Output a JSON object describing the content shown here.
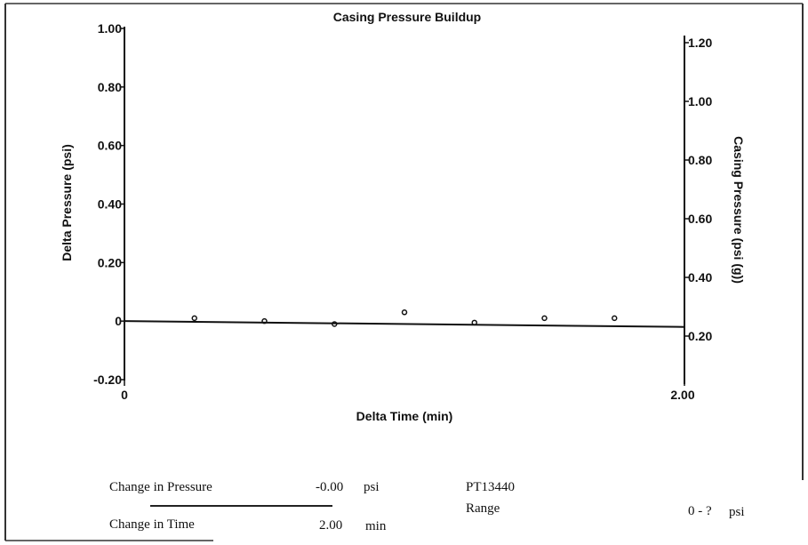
{
  "chart_data": {
    "type": "scatter",
    "title": "Casing Pressure Buildup",
    "xlabel": "Delta Time (min)",
    "ylabel": "Delta Pressure (psi)",
    "y2label": "Casing Pressure (psi (g))",
    "xlim": [
      0,
      2.0
    ],
    "ylim": [
      -0.2,
      1.0
    ],
    "y2lim": [
      0.2,
      1.2
    ],
    "x_ticks": [
      "0",
      "2.00"
    ],
    "y_ticks": [
      "1.00",
      "0.80",
      "0.60",
      "0.40",
      "0.20",
      "0",
      "-0.20"
    ],
    "y_tick_values": [
      1.0,
      0.8,
      0.6,
      0.4,
      0.2,
      0,
      -0.2
    ],
    "y2_ticks": [
      "1.20",
      "1.00",
      "0.80",
      "0.60",
      "0.40",
      "0.20"
    ],
    "y2_tick_values": [
      1.2,
      1.0,
      0.8,
      0.6,
      0.4,
      0.2
    ],
    "grid": false,
    "legend": "none",
    "line": {
      "x": [
        0,
        2.0
      ],
      "y": [
        0.0,
        -0.02
      ]
    },
    "points": [
      {
        "x": 0.25,
        "y": 0.01
      },
      {
        "x": 0.5,
        "y": 0.0
      },
      {
        "x": 0.75,
        "y": -0.01
      },
      {
        "x": 1.0,
        "y": 0.03
      },
      {
        "x": 1.25,
        "y": -0.005
      },
      {
        "x": 1.5,
        "y": 0.01
      },
      {
        "x": 1.75,
        "y": 0.01
      }
    ]
  },
  "summary": {
    "pressure_label": "Change in Pressure",
    "pressure_value": "-0.00",
    "pressure_unit": "psi",
    "time_label": "Change in Time",
    "time_value": "2.00",
    "time_unit": "min",
    "tag": "PT13440",
    "range_label": "Range",
    "range_value": "0 - ?",
    "range_unit": "psi"
  }
}
